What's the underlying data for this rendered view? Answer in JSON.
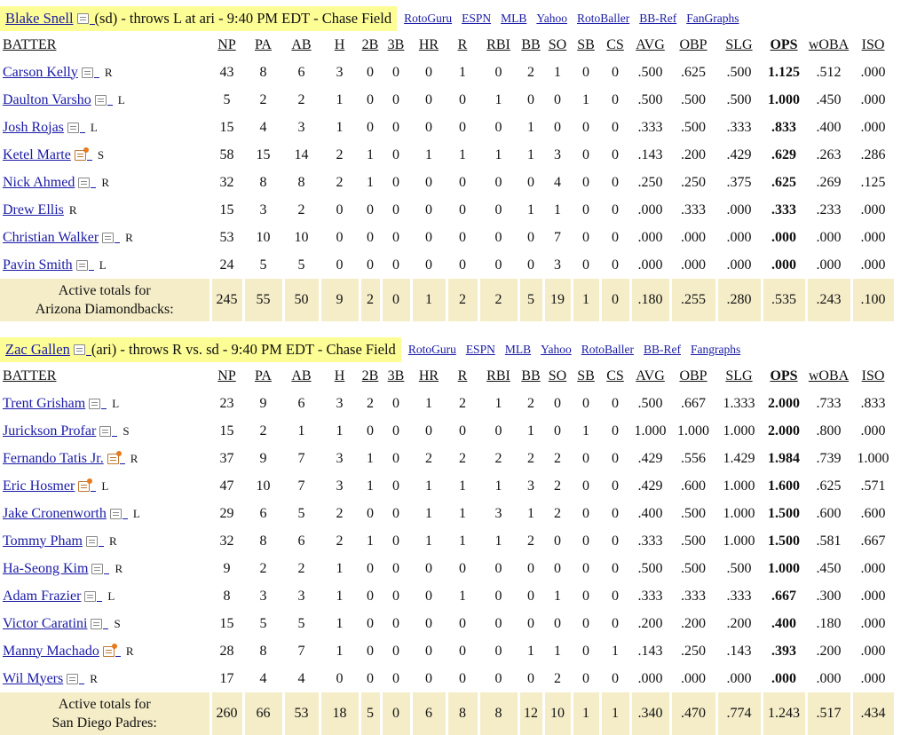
{
  "games": [
    {
      "pitcher_name": "Blake Snell",
      "pitcher_info": "(sd) - throws L at ari - 9:40 PM EDT - Chase Field",
      "links": [
        "RotoGuru",
        "ESPN",
        "MLB",
        "Yahoo",
        "RotoBaller",
        "BB-Ref",
        "FanGraphs"
      ],
      "headers": [
        "BATTER",
        "NP",
        "PA",
        "AB",
        "H",
        "2B",
        "3B",
        "HR",
        "R",
        "RBI",
        "BB",
        "SO",
        "SB",
        "CS",
        "AVG",
        "OBP",
        "SLG",
        "OPS",
        "wOBA",
        "ISO"
      ],
      "rows": [
        {
          "name": "Carson Kelly",
          "hand": "R",
          "hot": false,
          "stats": [
            "43",
            "8",
            "6",
            "3",
            "0",
            "0",
            "0",
            "1",
            "0",
            "2",
            "1",
            "0",
            "0",
            ".500",
            ".625",
            ".500",
            "1.125",
            ".512",
            ".000"
          ]
        },
        {
          "name": "Daulton Varsho",
          "hand": "L",
          "hot": false,
          "stats": [
            "5",
            "2",
            "2",
            "1",
            "0",
            "0",
            "0",
            "0",
            "1",
            "0",
            "0",
            "1",
            "0",
            ".500",
            ".500",
            ".500",
            "1.000",
            ".450",
            ".000"
          ]
        },
        {
          "name": "Josh Rojas",
          "hand": "L",
          "hot": false,
          "stats": [
            "15",
            "4",
            "3",
            "1",
            "0",
            "0",
            "0",
            "0",
            "0",
            "1",
            "0",
            "0",
            "0",
            ".333",
            ".500",
            ".333",
            ".833",
            ".400",
            ".000"
          ]
        },
        {
          "name": "Ketel Marte",
          "hand": "S",
          "hot": true,
          "stats": [
            "58",
            "15",
            "14",
            "2",
            "1",
            "0",
            "1",
            "1",
            "1",
            "1",
            "3",
            "0",
            "0",
            ".143",
            ".200",
            ".429",
            ".629",
            ".263",
            ".286"
          ]
        },
        {
          "name": "Nick Ahmed",
          "hand": "R",
          "hot": false,
          "stats": [
            "32",
            "8",
            "8",
            "2",
            "1",
            "0",
            "0",
            "0",
            "0",
            "0",
            "4",
            "0",
            "0",
            ".250",
            ".250",
            ".375",
            ".625",
            ".269",
            ".125"
          ]
        },
        {
          "name": "Drew Ellis",
          "hand": "R",
          "hot": false,
          "noicon": true,
          "stats": [
            "15",
            "3",
            "2",
            "0",
            "0",
            "0",
            "0",
            "0",
            "0",
            "1",
            "1",
            "0",
            "0",
            ".000",
            ".333",
            ".000",
            ".333",
            ".233",
            ".000"
          ]
        },
        {
          "name": "Christian Walker",
          "hand": "R",
          "hot": false,
          "stats": [
            "53",
            "10",
            "10",
            "0",
            "0",
            "0",
            "0",
            "0",
            "0",
            "0",
            "7",
            "0",
            "0",
            ".000",
            ".000",
            ".000",
            ".000",
            ".000",
            ".000"
          ]
        },
        {
          "name": "Pavin Smith",
          "hand": "L",
          "hot": false,
          "stats": [
            "24",
            "5",
            "5",
            "0",
            "0",
            "0",
            "0",
            "0",
            "0",
            "0",
            "3",
            "0",
            "0",
            ".000",
            ".000",
            ".000",
            ".000",
            ".000",
            ".000"
          ]
        }
      ],
      "totals_label_1": "Active totals for",
      "totals_label_2": "Arizona Diamondbacks:",
      "totals": [
        "245",
        "55",
        "50",
        "9",
        "2",
        "0",
        "1",
        "2",
        "2",
        "5",
        "19",
        "1",
        "0",
        ".180",
        ".255",
        ".280",
        ".535",
        ".243",
        ".100"
      ]
    },
    {
      "pitcher_name": "Zac Gallen",
      "pitcher_info": "(ari) - throws R vs. sd - 9:40 PM EDT - Chase Field",
      "links": [
        "RotoGuru",
        "ESPN",
        "MLB",
        "Yahoo",
        "RotoBaller",
        "BB-Ref",
        "Fangraphs"
      ],
      "headers": [
        "BATTER",
        "NP",
        "PA",
        "AB",
        "H",
        "2B",
        "3B",
        "HR",
        "R",
        "RBI",
        "BB",
        "SO",
        "SB",
        "CS",
        "AVG",
        "OBP",
        "SLG",
        "OPS",
        "wOBA",
        "ISO"
      ],
      "rows": [
        {
          "name": "Trent Grisham",
          "hand": "L",
          "hot": false,
          "stats": [
            "23",
            "9",
            "6",
            "3",
            "2",
            "0",
            "1",
            "2",
            "1",
            "2",
            "0",
            "0",
            "0",
            ".500",
            ".667",
            "1.333",
            "2.000",
            ".733",
            ".833"
          ]
        },
        {
          "name": "Jurickson Profar",
          "hand": "S",
          "hot": false,
          "stats": [
            "15",
            "2",
            "1",
            "1",
            "0",
            "0",
            "0",
            "0",
            "0",
            "1",
            "0",
            "1",
            "0",
            "1.000",
            "1.000",
            "1.000",
            "2.000",
            ".800",
            ".000"
          ]
        },
        {
          "name": "Fernando Tatis Jr.",
          "hand": "R",
          "hot": true,
          "stats": [
            "37",
            "9",
            "7",
            "3",
            "1",
            "0",
            "2",
            "2",
            "2",
            "2",
            "2",
            "0",
            "0",
            ".429",
            ".556",
            "1.429",
            "1.984",
            ".739",
            "1.000"
          ]
        },
        {
          "name": "Eric Hosmer",
          "hand": "L",
          "hot": true,
          "stats": [
            "47",
            "10",
            "7",
            "3",
            "1",
            "0",
            "1",
            "1",
            "1",
            "3",
            "2",
            "0",
            "0",
            ".429",
            ".600",
            "1.000",
            "1.600",
            ".625",
            ".571"
          ]
        },
        {
          "name": "Jake Cronenworth",
          "hand": "L",
          "hot": false,
          "stats": [
            "29",
            "6",
            "5",
            "2",
            "0",
            "0",
            "1",
            "1",
            "3",
            "1",
            "2",
            "0",
            "0",
            ".400",
            ".500",
            "1.000",
            "1.500",
            ".600",
            ".600"
          ]
        },
        {
          "name": "Tommy Pham",
          "hand": "R",
          "hot": false,
          "stats": [
            "32",
            "8",
            "6",
            "2",
            "1",
            "0",
            "1",
            "1",
            "1",
            "2",
            "0",
            "0",
            "0",
            ".333",
            ".500",
            "1.000",
            "1.500",
            ".581",
            ".667"
          ]
        },
        {
          "name": "Ha-Seong Kim",
          "hand": "R",
          "hot": false,
          "stats": [
            "9",
            "2",
            "2",
            "1",
            "0",
            "0",
            "0",
            "0",
            "0",
            "0",
            "0",
            "0",
            "0",
            ".500",
            ".500",
            ".500",
            "1.000",
            ".450",
            ".000"
          ]
        },
        {
          "name": "Adam Frazier",
          "hand": "L",
          "hot": false,
          "stats": [
            "8",
            "3",
            "3",
            "1",
            "0",
            "0",
            "0",
            "1",
            "0",
            "0",
            "1",
            "0",
            "0",
            ".333",
            ".333",
            ".333",
            ".667",
            ".300",
            ".000"
          ]
        },
        {
          "name": "Victor Caratini",
          "hand": "S",
          "hot": false,
          "stats": [
            "15",
            "5",
            "5",
            "1",
            "0",
            "0",
            "0",
            "0",
            "0",
            "0",
            "0",
            "0",
            "0",
            ".200",
            ".200",
            ".200",
            ".400",
            ".180",
            ".000"
          ]
        },
        {
          "name": "Manny Machado",
          "hand": "R",
          "hot": true,
          "stats": [
            "28",
            "8",
            "7",
            "1",
            "0",
            "0",
            "0",
            "0",
            "0",
            "1",
            "1",
            "0",
            "1",
            ".143",
            ".250",
            ".143",
            ".393",
            ".200",
            ".000"
          ]
        },
        {
          "name": "Wil Myers",
          "hand": "R",
          "hot": false,
          "stats": [
            "17",
            "4",
            "4",
            "0",
            "0",
            "0",
            "0",
            "0",
            "0",
            "0",
            "2",
            "0",
            "0",
            ".000",
            ".000",
            ".000",
            ".000",
            ".000",
            ".000"
          ]
        }
      ],
      "totals_label_1": "Active totals for",
      "totals_label_2": "San Diego Padres:",
      "totals": [
        "260",
        "66",
        "53",
        "18",
        "5",
        "0",
        "6",
        "8",
        "8",
        "12",
        "10",
        "1",
        "1",
        ".340",
        ".470",
        ".774",
        "1.243",
        ".517",
        ".434"
      ]
    }
  ]
}
